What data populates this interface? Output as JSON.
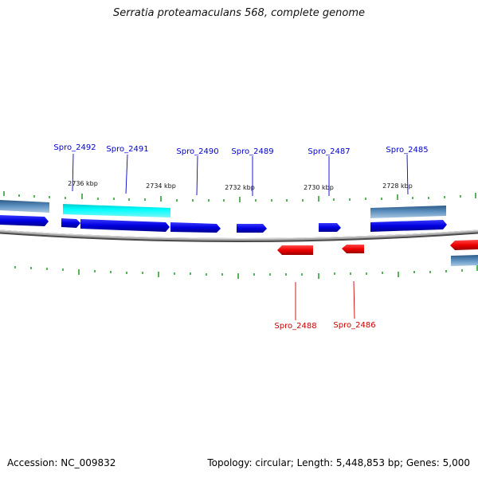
{
  "header": {
    "title": "Serratia proteamaculans 568, complete genome"
  },
  "footer": {
    "accession": "Accession: NC_009832",
    "summary": "Topology: circular; Length: 5,448,853 bp; Genes: 5,000"
  },
  "ruler": {
    "labels": [
      "2736 kbp",
      "2734 kbp",
      "2732 kbp",
      "2730 kbp",
      "2728 kbp"
    ]
  },
  "colors": {
    "forward_gene": "#0000ee",
    "reverse_gene": "#ee0000",
    "highlight": "#00e5e5",
    "backbone": "#888888",
    "tick": "#008800",
    "forward_label": "#0000cc",
    "reverse_label": "#cc0000"
  },
  "genes": {
    "forward": [
      "Spro_2492",
      "Spro_2491",
      "Spro_2490",
      "Spro_2489",
      "Spro_2487",
      "Spro_2485"
    ],
    "reverse": [
      "Spro_2488",
      "Spro_2486"
    ]
  }
}
